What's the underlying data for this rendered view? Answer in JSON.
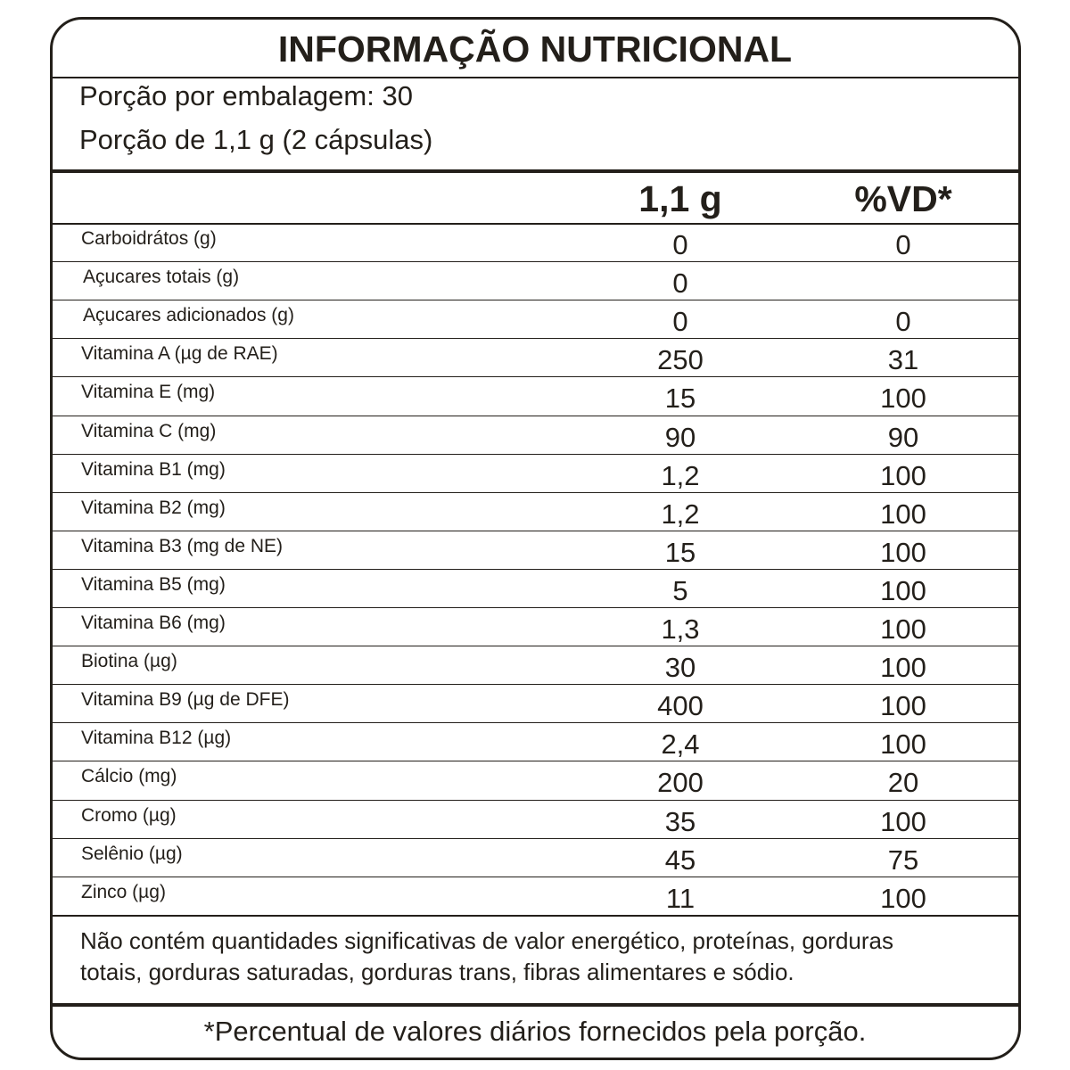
{
  "header": {
    "title": "INFORMAÇÃO NUTRICIONAL",
    "servings": [
      "Porção por embalagem: 30",
      "Porção de 1,1 g (2 cápsulas)"
    ]
  },
  "table": {
    "columns": [
      "1,1 g",
      "%VD*"
    ],
    "rows": [
      [
        "Carboidrátos (g)",
        "0",
        "0"
      ],
      [
        "Açucares totais (g)",
        "0",
        null
      ],
      [
        "Açucares adicionados (g)",
        "0",
        "0"
      ],
      [
        "Vitamina A (µg de RAE)",
        "250",
        "31"
      ],
      [
        "Vitamina E (mg)",
        "15",
        "100"
      ],
      [
        "Vitamina C (mg)",
        "90",
        "90"
      ],
      [
        "Vitamina B1 (mg)",
        "1,2",
        "100"
      ],
      [
        "Vitamina B2 (mg)",
        "1,2",
        "100"
      ],
      [
        "Vitamina B3 (mg de NE)",
        "15",
        "100"
      ],
      [
        "Vitamina B5 (mg)",
        "5",
        "100"
      ],
      [
        "Vitamina B6 (mg)",
        "1,3",
        "100"
      ],
      [
        "Biotina (µg)",
        "30",
        "100"
      ],
      [
        "Vitamina B9 (µg de DFE)",
        "400",
        "100"
      ],
      [
        "Vitamina B12 (µg)",
        "2,4",
        "100"
      ],
      [
        "Cálcio (mg)",
        "200",
        "20"
      ],
      [
        "Cromo (µg)",
        "35",
        "100"
      ],
      [
        "Selênio (µg)",
        "45",
        "75"
      ],
      [
        "Zinco (µg)",
        "11",
        "100"
      ]
    ]
  },
  "note": [
    "Não contém quantidades significativas de valor energético, proteínas, gorduras",
    "totais, gorduras saturadas, gorduras trans, fibras alimentares e sódio."
  ],
  "footnote": "*Percentual de valores diários fornecidos pela porção."
}
